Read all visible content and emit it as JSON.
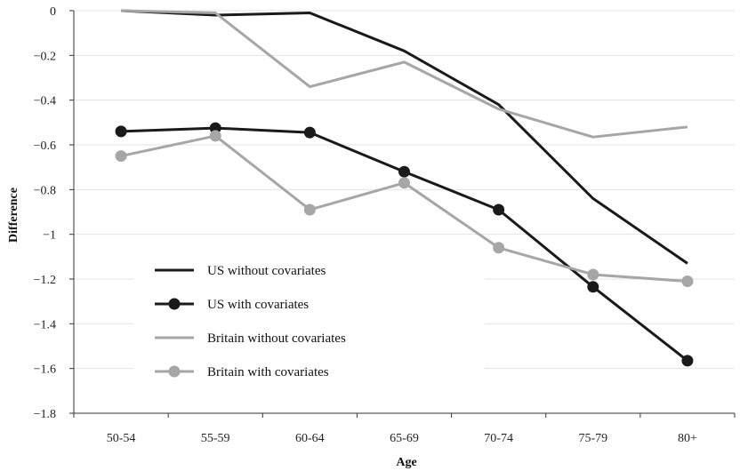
{
  "chart_data": {
    "type": "line",
    "xlabel": "Age",
    "ylabel": "Difference",
    "categories": [
      "50-54",
      "55-59",
      "60-64",
      "65-69",
      "70-74",
      "75-79",
      "80+"
    ],
    "ylim": [
      -1.8,
      0
    ],
    "yticks": [
      0,
      -0.2,
      -0.4,
      -0.6,
      -0.8,
      -1,
      -1.2,
      -1.4,
      -1.6,
      -1.8
    ],
    "ytick_labels": [
      "0",
      "−0.2",
      "−0.4",
      "−0.6",
      "−0.8",
      "−1",
      "−1.2",
      "−1.4",
      "−1.6",
      "−1.8"
    ],
    "grid": true,
    "legend_position": "lower-left",
    "series": [
      {
        "name": "US without covariates",
        "color": "#1a1a1a",
        "markers": false,
        "values": [
          0.0,
          -0.02,
          -0.01,
          -0.18,
          -0.42,
          -0.84,
          -1.13
        ]
      },
      {
        "name": "US with covariates",
        "color": "#1a1a1a",
        "markers": true,
        "values": [
          -0.54,
          -0.525,
          -0.545,
          -0.72,
          -0.89,
          -1.235,
          -1.565
        ]
      },
      {
        "name": "Britain without covariates",
        "color": "#a6a6a6",
        "markers": false,
        "values": [
          0.0,
          -0.01,
          -0.34,
          -0.23,
          -0.44,
          -0.565,
          -0.52
        ]
      },
      {
        "name": "Britain with covariates",
        "color": "#a6a6a6",
        "markers": true,
        "values": [
          -0.65,
          -0.56,
          -0.89,
          -0.77,
          -1.06,
          -1.18,
          -1.21
        ]
      }
    ]
  }
}
